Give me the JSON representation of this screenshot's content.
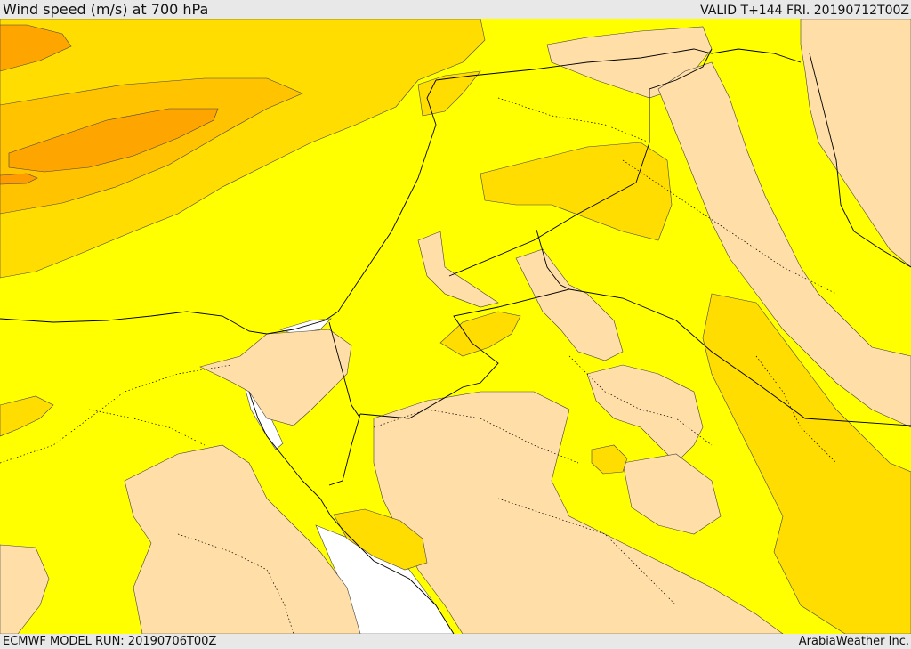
{
  "header": {
    "title": "Wind speed (m/s) at 700 hPa",
    "valid": "VALID T+144 FRI. 20190712T00Z"
  },
  "footer": {
    "model_run": "ECMWF MODEL RUN: 20190706T00Z",
    "credit": "ArabiaWeather Inc."
  },
  "map": {
    "region": "Eastern Mediterranean & Middle East",
    "colors": {
      "background_low": "#ffffff",
      "light_peach": "#ffdea8",
      "yellow": "#ffff00",
      "gold": "#ffdd00",
      "amber": "#ffc300",
      "orange": "#ffa500",
      "dark_orange": "#ff9d00",
      "boundary": "#000000"
    }
  }
}
